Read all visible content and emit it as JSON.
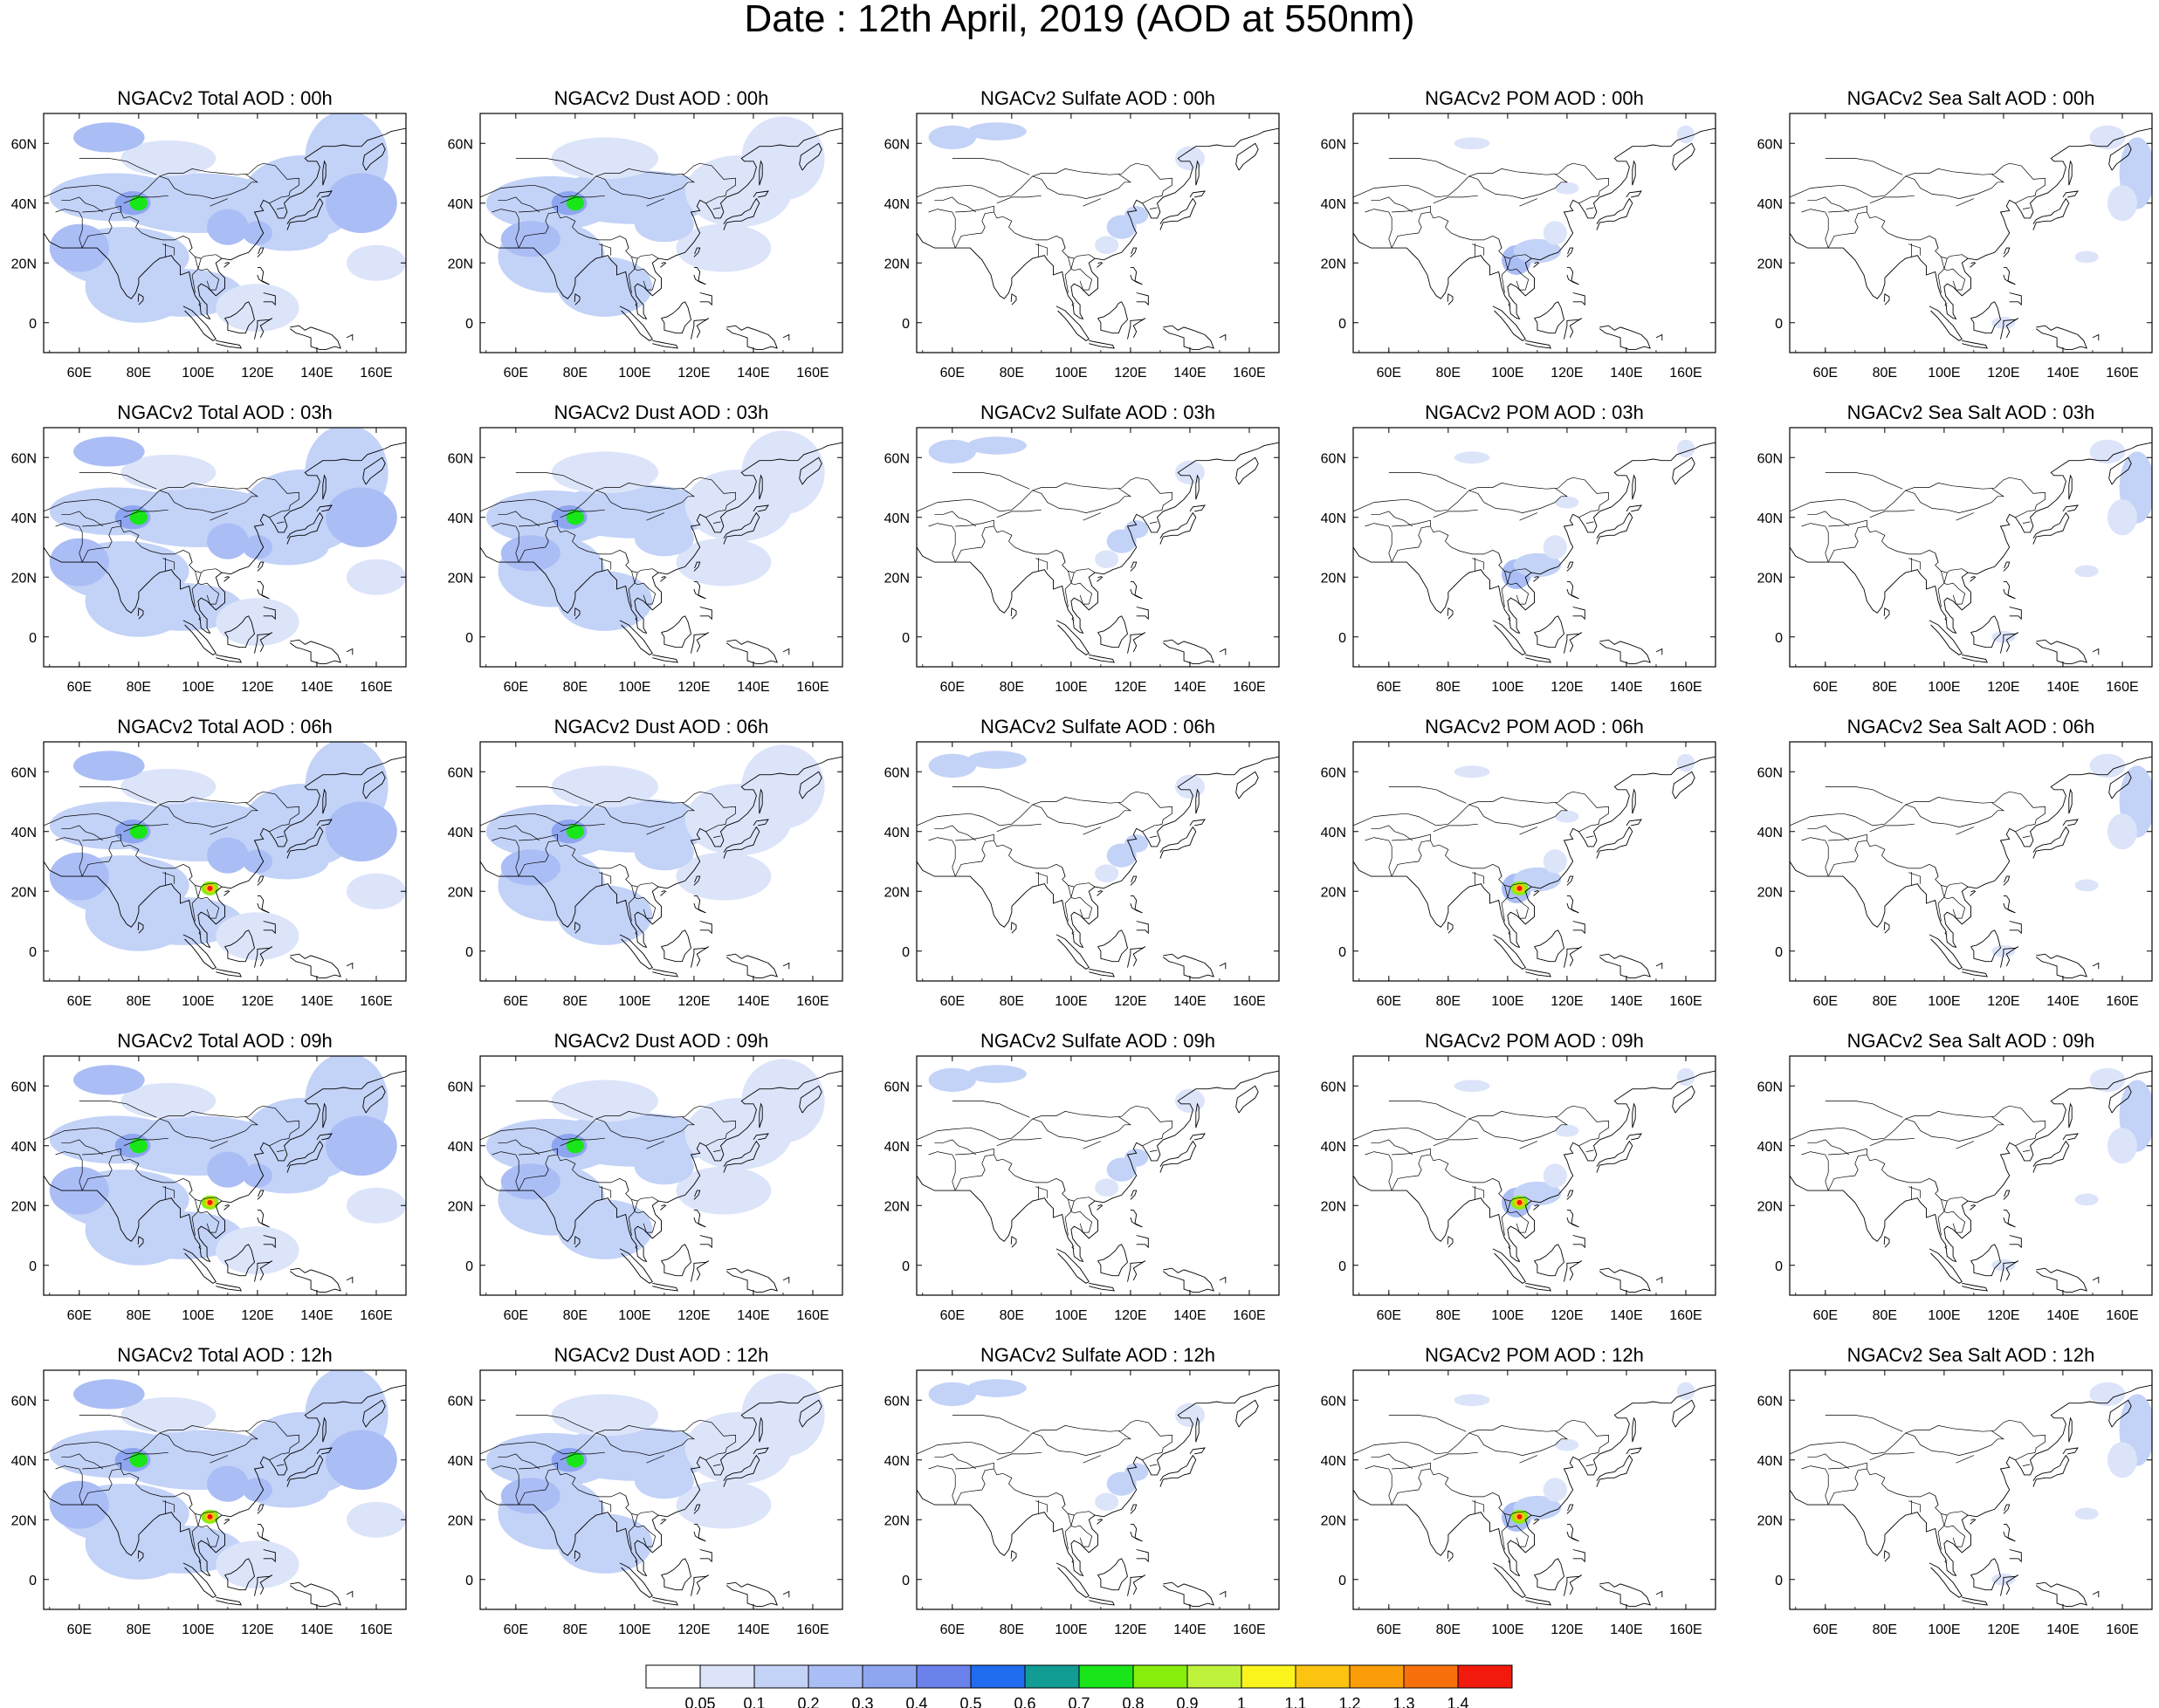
{
  "title": "Date : 12th April, 2019 (AOD at 550nm)",
  "panel_titles": [
    [
      "NGACv2 Total AOD : 00h",
      "NGACv2 Dust AOD : 00h",
      "NGACv2 Sulfate AOD : 00h",
      "NGACv2 POM AOD : 00h",
      "NGACv2 Sea Salt AOD : 00h"
    ],
    [
      "NGACv2 Total AOD : 03h",
      "NGACv2 Dust AOD : 03h",
      "NGACv2 Sulfate AOD : 03h",
      "NGACv2 POM AOD : 03h",
      "NGACv2 Sea Salt AOD : 03h"
    ],
    [
      "NGACv2 Total AOD : 06h",
      "NGACv2 Dust AOD : 06h",
      "NGACv2 Sulfate AOD : 06h",
      "NGACv2 POM AOD : 06h",
      "NGACv2 Sea Salt AOD : 06h"
    ],
    [
      "NGACv2 Total AOD : 09h",
      "NGACv2 Dust AOD : 09h",
      "NGACv2 Sulfate AOD : 09h",
      "NGACv2 POM AOD : 09h",
      "NGACv2 Sea Salt  AOD : 09h"
    ],
    [
      "NGACv2 Total AOD  : 12h",
      "NGACv2 Dust AOD : 12h",
      "NGACv2 Sulfate AOD : 12h",
      "NGACv2 POM  AOD : 12h",
      "NGACv2 Sea Salt  AOD : 12h"
    ]
  ],
  "map": {
    "lon_range": [
      48,
      170
    ],
    "lat_range": [
      -10,
      70
    ],
    "x_ticks": [
      "60E",
      "80E",
      "100E",
      "120E",
      "140E",
      "160E"
    ],
    "x_tick_values": [
      60,
      80,
      100,
      120,
      140,
      160
    ],
    "y_ticks": [
      "60N",
      "40N",
      "20N",
      "0"
    ],
    "y_tick_values": [
      60,
      40,
      20,
      0
    ]
  },
  "colorbar": {
    "labels": [
      "0.05",
      "0.1",
      "0.2",
      "0.3",
      "0.4",
      "0.5",
      "0.6",
      "0.7",
      "0.8",
      "0.9",
      "1",
      "1.1",
      "1.2",
      "1.3",
      "1.4"
    ],
    "colors": [
      "#ffffff",
      "#dce4fa",
      "#c3d2f7",
      "#aabdf5",
      "#8ea6f0",
      "#6b82ec",
      "#1f6cf0",
      "#119c94",
      "#19e619",
      "#87ee0c",
      "#bff23a",
      "#fbf31c",
      "#fcc310",
      "#fb9d08",
      "#f7700c",
      "#f21a0c"
    ]
  }
}
